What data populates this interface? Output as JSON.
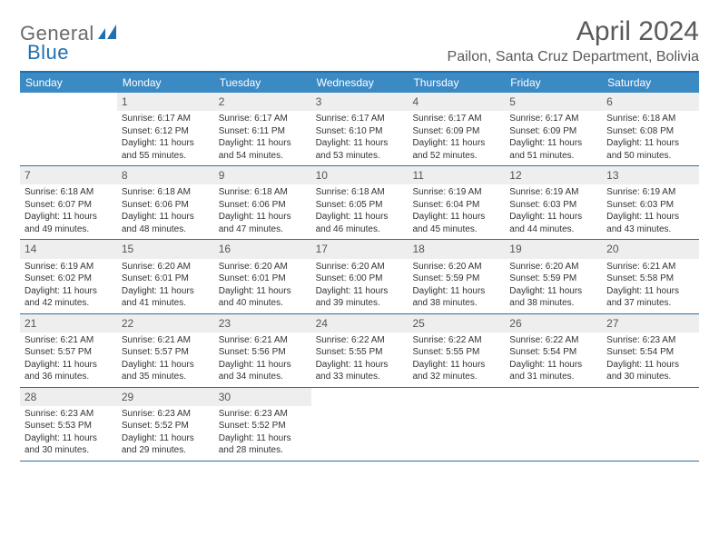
{
  "logo": {
    "general": "General",
    "blue": "Blue"
  },
  "title": "April 2024",
  "location": "Pailon, Santa Cruz Department, Bolivia",
  "colors": {
    "header_bg": "#3b8ac4",
    "rule": "#2a6fa8",
    "daynum_bg": "#eeeeee",
    "text": "#333333"
  },
  "weekdays": [
    "Sunday",
    "Monday",
    "Tuesday",
    "Wednesday",
    "Thursday",
    "Friday",
    "Saturday"
  ],
  "weeks": [
    [
      {
        "empty": true
      },
      {
        "n": "1",
        "sr": "Sunrise: 6:17 AM",
        "ss": "Sunset: 6:12 PM",
        "dl": "Daylight: 11 hours and 55 minutes."
      },
      {
        "n": "2",
        "sr": "Sunrise: 6:17 AM",
        "ss": "Sunset: 6:11 PM",
        "dl": "Daylight: 11 hours and 54 minutes."
      },
      {
        "n": "3",
        "sr": "Sunrise: 6:17 AM",
        "ss": "Sunset: 6:10 PM",
        "dl": "Daylight: 11 hours and 53 minutes."
      },
      {
        "n": "4",
        "sr": "Sunrise: 6:17 AM",
        "ss": "Sunset: 6:09 PM",
        "dl": "Daylight: 11 hours and 52 minutes."
      },
      {
        "n": "5",
        "sr": "Sunrise: 6:17 AM",
        "ss": "Sunset: 6:09 PM",
        "dl": "Daylight: 11 hours and 51 minutes."
      },
      {
        "n": "6",
        "sr": "Sunrise: 6:18 AM",
        "ss": "Sunset: 6:08 PM",
        "dl": "Daylight: 11 hours and 50 minutes."
      }
    ],
    [
      {
        "n": "7",
        "sr": "Sunrise: 6:18 AM",
        "ss": "Sunset: 6:07 PM",
        "dl": "Daylight: 11 hours and 49 minutes."
      },
      {
        "n": "8",
        "sr": "Sunrise: 6:18 AM",
        "ss": "Sunset: 6:06 PM",
        "dl": "Daylight: 11 hours and 48 minutes."
      },
      {
        "n": "9",
        "sr": "Sunrise: 6:18 AM",
        "ss": "Sunset: 6:06 PM",
        "dl": "Daylight: 11 hours and 47 minutes."
      },
      {
        "n": "10",
        "sr": "Sunrise: 6:18 AM",
        "ss": "Sunset: 6:05 PM",
        "dl": "Daylight: 11 hours and 46 minutes."
      },
      {
        "n": "11",
        "sr": "Sunrise: 6:19 AM",
        "ss": "Sunset: 6:04 PM",
        "dl": "Daylight: 11 hours and 45 minutes."
      },
      {
        "n": "12",
        "sr": "Sunrise: 6:19 AM",
        "ss": "Sunset: 6:03 PM",
        "dl": "Daylight: 11 hours and 44 minutes."
      },
      {
        "n": "13",
        "sr": "Sunrise: 6:19 AM",
        "ss": "Sunset: 6:03 PM",
        "dl": "Daylight: 11 hours and 43 minutes."
      }
    ],
    [
      {
        "n": "14",
        "sr": "Sunrise: 6:19 AM",
        "ss": "Sunset: 6:02 PM",
        "dl": "Daylight: 11 hours and 42 minutes."
      },
      {
        "n": "15",
        "sr": "Sunrise: 6:20 AM",
        "ss": "Sunset: 6:01 PM",
        "dl": "Daylight: 11 hours and 41 minutes."
      },
      {
        "n": "16",
        "sr": "Sunrise: 6:20 AM",
        "ss": "Sunset: 6:01 PM",
        "dl": "Daylight: 11 hours and 40 minutes."
      },
      {
        "n": "17",
        "sr": "Sunrise: 6:20 AM",
        "ss": "Sunset: 6:00 PM",
        "dl": "Daylight: 11 hours and 39 minutes."
      },
      {
        "n": "18",
        "sr": "Sunrise: 6:20 AM",
        "ss": "Sunset: 5:59 PM",
        "dl": "Daylight: 11 hours and 38 minutes."
      },
      {
        "n": "19",
        "sr": "Sunrise: 6:20 AM",
        "ss": "Sunset: 5:59 PM",
        "dl": "Daylight: 11 hours and 38 minutes."
      },
      {
        "n": "20",
        "sr": "Sunrise: 6:21 AM",
        "ss": "Sunset: 5:58 PM",
        "dl": "Daylight: 11 hours and 37 minutes."
      }
    ],
    [
      {
        "n": "21",
        "sr": "Sunrise: 6:21 AM",
        "ss": "Sunset: 5:57 PM",
        "dl": "Daylight: 11 hours and 36 minutes."
      },
      {
        "n": "22",
        "sr": "Sunrise: 6:21 AM",
        "ss": "Sunset: 5:57 PM",
        "dl": "Daylight: 11 hours and 35 minutes."
      },
      {
        "n": "23",
        "sr": "Sunrise: 6:21 AM",
        "ss": "Sunset: 5:56 PM",
        "dl": "Daylight: 11 hours and 34 minutes."
      },
      {
        "n": "24",
        "sr": "Sunrise: 6:22 AM",
        "ss": "Sunset: 5:55 PM",
        "dl": "Daylight: 11 hours and 33 minutes."
      },
      {
        "n": "25",
        "sr": "Sunrise: 6:22 AM",
        "ss": "Sunset: 5:55 PM",
        "dl": "Daylight: 11 hours and 32 minutes."
      },
      {
        "n": "26",
        "sr": "Sunrise: 6:22 AM",
        "ss": "Sunset: 5:54 PM",
        "dl": "Daylight: 11 hours and 31 minutes."
      },
      {
        "n": "27",
        "sr": "Sunrise: 6:23 AM",
        "ss": "Sunset: 5:54 PM",
        "dl": "Daylight: 11 hours and 30 minutes."
      }
    ],
    [
      {
        "n": "28",
        "sr": "Sunrise: 6:23 AM",
        "ss": "Sunset: 5:53 PM",
        "dl": "Daylight: 11 hours and 30 minutes."
      },
      {
        "n": "29",
        "sr": "Sunrise: 6:23 AM",
        "ss": "Sunset: 5:52 PM",
        "dl": "Daylight: 11 hours and 29 minutes."
      },
      {
        "n": "30",
        "sr": "Sunrise: 6:23 AM",
        "ss": "Sunset: 5:52 PM",
        "dl": "Daylight: 11 hours and 28 minutes."
      },
      {
        "empty": true
      },
      {
        "empty": true
      },
      {
        "empty": true
      },
      {
        "empty": true
      }
    ]
  ]
}
